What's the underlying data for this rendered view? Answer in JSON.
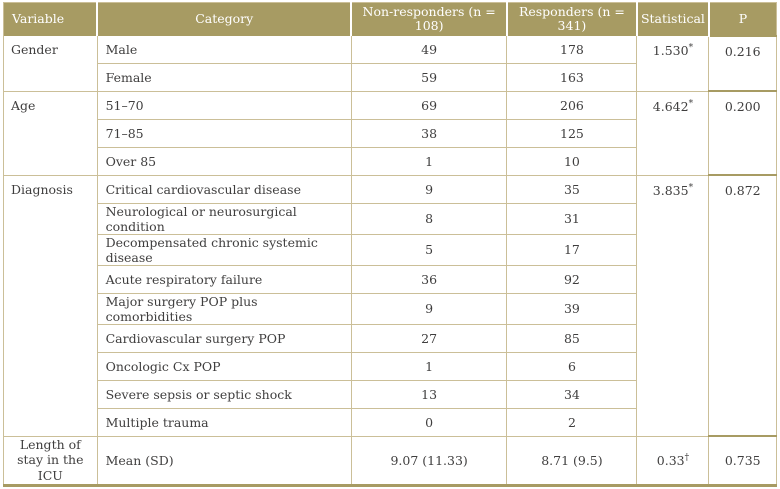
{
  "columns": [
    "Variable",
    "Category",
    "Non-responders (n = 108)",
    "Responders (n = 341)",
    "Statistical",
    "P"
  ],
  "sections": [
    {
      "variable": "Gender",
      "rows": [
        {
          "category": "Male",
          "non_responders": "49",
          "responders": "178"
        },
        {
          "category": "Female",
          "non_responders": "59",
          "responders": "163"
        }
      ],
      "statistical": "1.530",
      "statistical_mark": "*",
      "p": "0.216"
    },
    {
      "variable": "Age",
      "rows": [
        {
          "category": "51–70",
          "non_responders": "69",
          "responders": "206"
        },
        {
          "category": "71–85",
          "non_responders": "38",
          "responders": "125"
        },
        {
          "category": "Over 85",
          "non_responders": "1",
          "responders": "10"
        }
      ],
      "statistical": "4.642",
      "statistical_mark": "*",
      "p": "0.200"
    },
    {
      "variable": "Diagnosis",
      "rows": [
        {
          "category": "Critical cardiovascular disease",
          "non_responders": "9",
          "responders": "35"
        },
        {
          "category": "Neurological or neurosurgical condition",
          "non_responders": "8",
          "responders": "31"
        },
        {
          "category": "Decompensated chronic systemic disease",
          "non_responders": "5",
          "responders": "17"
        },
        {
          "category": "Acute respiratory failure",
          "non_responders": "36",
          "responders": "92"
        },
        {
          "category": "Major surgery POP plus comorbidities",
          "non_responders": "9",
          "responders": "39"
        },
        {
          "category": "Cardiovascular surgery POP",
          "non_responders": "27",
          "responders": "85"
        },
        {
          "category": "Oncologic Cx POP",
          "non_responders": "1",
          "responders": "6"
        },
        {
          "category": "Severe sepsis or septic shock",
          "non_responders": "13",
          "responders": "34"
        },
        {
          "category": "Multiple trauma",
          "non_responders": "0",
          "responders": "2"
        }
      ],
      "statistical": "3.835",
      "statistical_mark": "*",
      "p": "0.872"
    },
    {
      "variable": "Length of stay in the ICU",
      "rows": [
        {
          "category": "Mean (SD)",
          "non_responders": "9.07 (11.33)",
          "responders": "8.71 (9.5)"
        }
      ],
      "statistical": "0.33",
      "statistical_mark": "†",
      "p": "0.735"
    }
  ],
  "colors": {
    "header_bg": "#a79b63",
    "border_light": "#cbbf98",
    "border_dark": "#a79b63",
    "text": "#3f3e3e",
    "header_text": "#ffffff"
  }
}
